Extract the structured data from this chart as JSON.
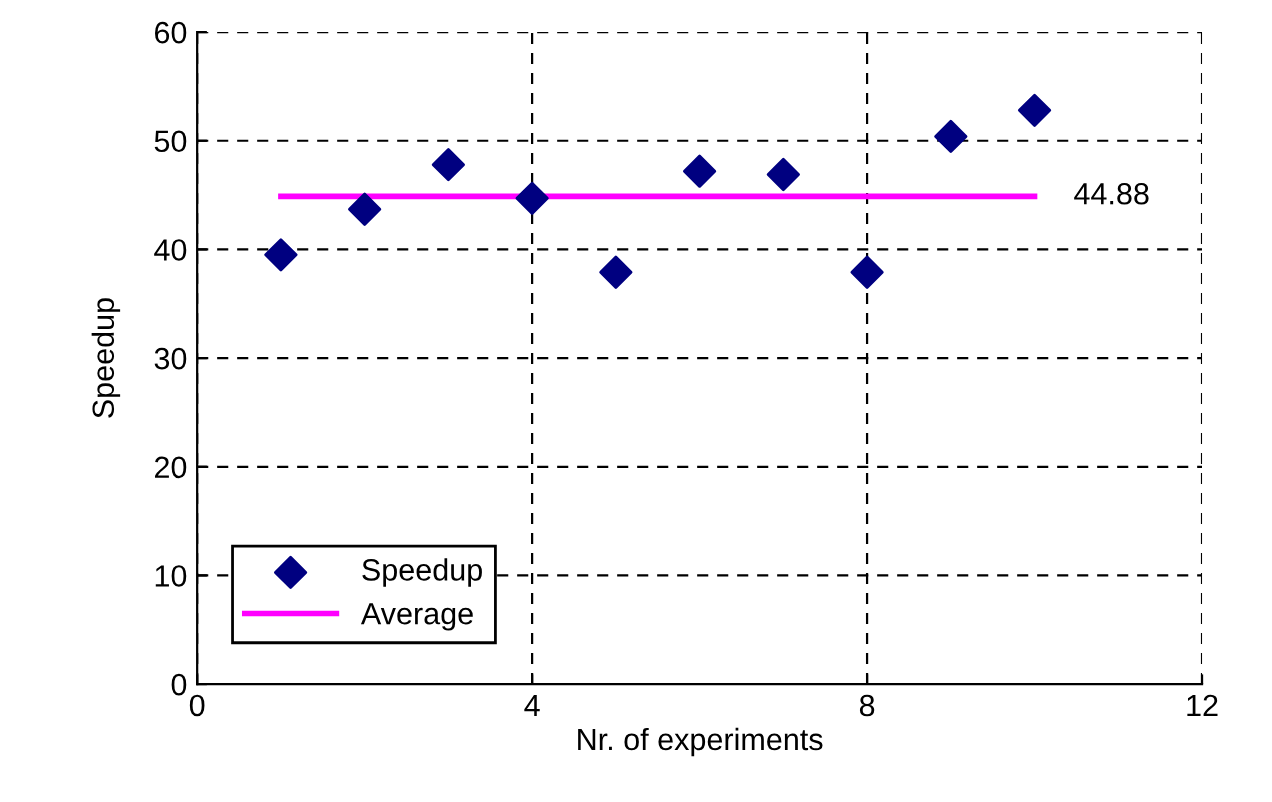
{
  "chart_data": {
    "type": "scatter",
    "xlabel": "Nr. of experiments",
    "ylabel": "Speedup",
    "x": [
      1,
      2,
      3,
      4,
      5,
      6,
      7,
      8,
      9,
      10
    ],
    "series": [
      {
        "name": "Speedup",
        "color": "#000080",
        "marker": "diamond",
        "values": [
          39.5,
          43.7,
          47.8,
          44.7,
          37.9,
          47.2,
          46.9,
          37.9,
          50.4,
          52.8
        ]
      },
      {
        "name": "Average",
        "color": "#ff00ff",
        "type": "line",
        "marker": "none",
        "x": [
          1,
          10
        ],
        "values": [
          44.88,
          44.88
        ]
      }
    ],
    "annotations": [
      {
        "text": "44.88",
        "x": 10,
        "y": 44.88
      }
    ],
    "xlim": [
      0,
      12
    ],
    "xticks": [
      0,
      4,
      8,
      12
    ],
    "ylim": [
      0,
      60
    ],
    "yticks": [
      0,
      10,
      20,
      30,
      40,
      50,
      60
    ],
    "grid": true,
    "legend": "bottom left"
  }
}
